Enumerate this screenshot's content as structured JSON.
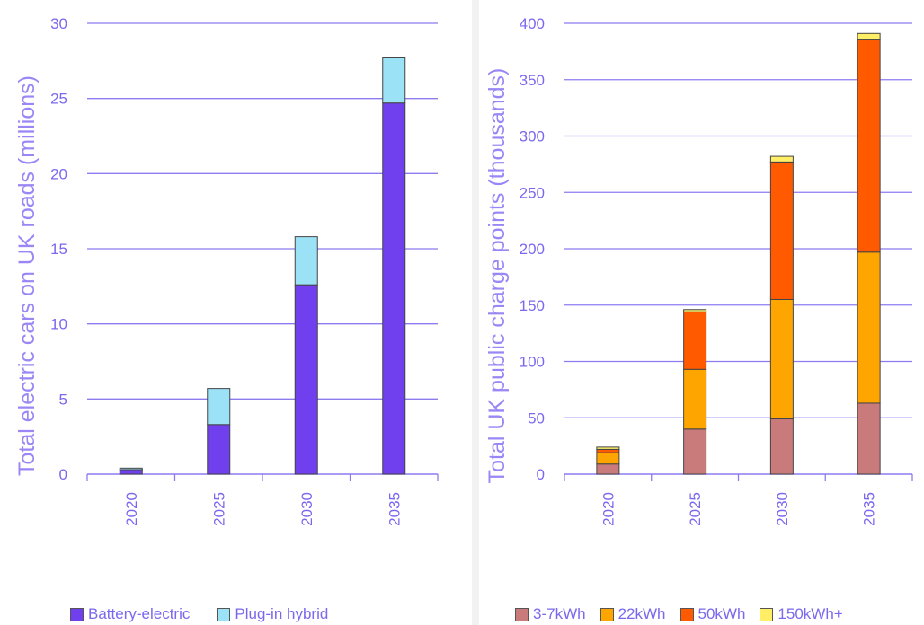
{
  "chart_data": [
    {
      "type": "bar",
      "stacked": true,
      "categories": [
        "2020",
        "2025",
        "2030",
        "2035"
      ],
      "ylabel": "Total electric cars on UK roads (millions)",
      "yticks": [
        "0",
        "5",
        "10",
        "15",
        "20",
        "25",
        "30"
      ],
      "ylim": [
        0,
        30
      ],
      "grid": true,
      "legend_position": "bottom",
      "series": [
        {
          "name": "Battery-electric",
          "color": "#7040ee",
          "values": [
            0.3,
            3.3,
            12.6,
            24.7
          ]
        },
        {
          "name": "Plug-in hybrid",
          "color": "#9be2f7",
          "values": [
            0.1,
            2.4,
            3.2,
            3.0
          ]
        }
      ]
    },
    {
      "type": "bar",
      "stacked": true,
      "categories": [
        "2020",
        "2025",
        "2030",
        "2035"
      ],
      "ylabel": "Total UK public charge points (thousands)",
      "yticks": [
        "0",
        "50",
        "100",
        "150",
        "200",
        "250",
        "300",
        "350",
        "400"
      ],
      "ylim": [
        0,
        400
      ],
      "grid": true,
      "legend_position": "bottom",
      "series": [
        {
          "name": "3-7kWh",
          "color": "#c97b7b",
          "values": [
            9,
            40,
            49,
            63
          ]
        },
        {
          "name": "22kWh",
          "color": "#ffa500",
          "values": [
            10,
            53,
            106,
            134
          ]
        },
        {
          "name": "50kWh",
          "color": "#ff5a00",
          "values": [
            3,
            51,
            122,
            189
          ]
        },
        {
          "name": "150kWh+",
          "color": "#ffee66",
          "values": [
            2,
            2,
            5,
            5
          ]
        }
      ]
    }
  ]
}
